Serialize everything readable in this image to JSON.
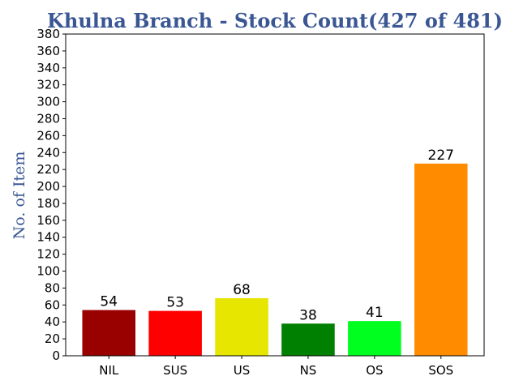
{
  "chart_data": {
    "type": "bar",
    "title": "Khulna Branch - Stock Count(427 of 481)",
    "xlabel": "",
    "ylabel": "No. of Item",
    "ylim": [
      0,
      380
    ],
    "ytick_step": 20,
    "grid": false,
    "categories": [
      "NIL",
      "SUS",
      "US",
      "NS",
      "OS",
      "SOS"
    ],
    "values": [
      54,
      53,
      68,
      38,
      41,
      227
    ],
    "colors": [
      "#990000",
      "#ff0000",
      "#e6e600",
      "#008000",
      "#00ff1e",
      "#ff8c00"
    ]
  }
}
